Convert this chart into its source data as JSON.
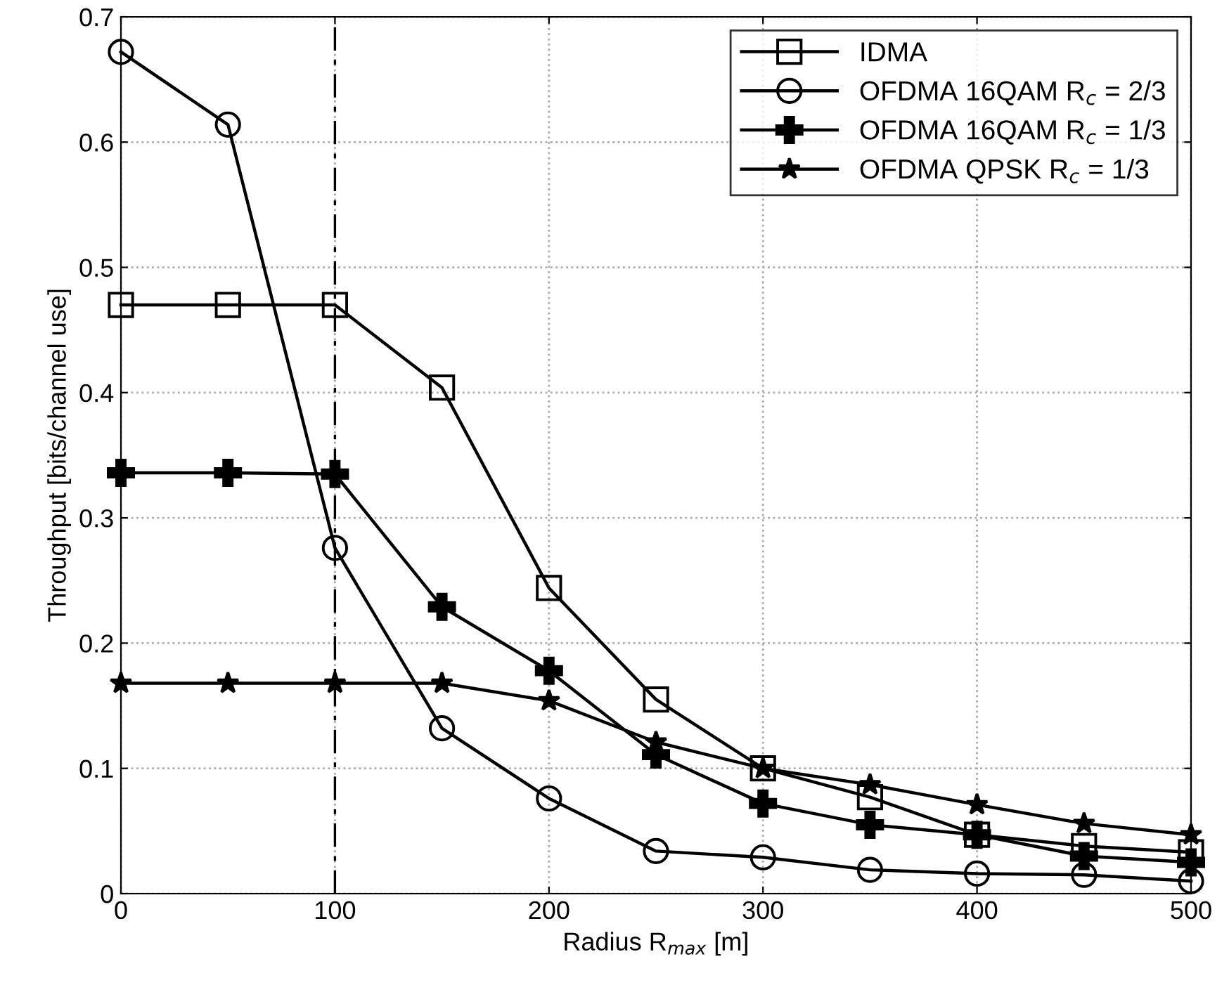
{
  "chart_data": {
    "type": "line",
    "xlabel": "Radius R$_{max}$ [m]",
    "ylabel": "Throughput [bits/channel use]",
    "x": [
      0,
      50,
      100,
      150,
      200,
      250,
      300,
      350,
      400,
      450,
      500
    ],
    "series": [
      {
        "name": "IDMA",
        "color": "#000000",
        "marker": "square",
        "values": [
          0.47,
          0.47,
          0.47,
          0.404,
          0.244,
          0.155,
          0.1,
          0.077,
          0.047,
          0.038,
          0.033
        ]
      },
      {
        "name": "OFDMA 16QAM R$_{c}$ = 2/3",
        "color": "#000000",
        "marker": "circle",
        "values": [
          0.672,
          0.614,
          0.276,
          0.132,
          0.076,
          0.034,
          0.029,
          0.019,
          0.016,
          0.015,
          0.01
        ]
      },
      {
        "name": "OFDMA 16QAM R$_{c}$ = 1/3",
        "color": "#000000",
        "marker": "cross",
        "values": [
          0.336,
          0.336,
          0.335,
          0.229,
          0.178,
          0.111,
          0.072,
          0.055,
          0.047,
          0.03,
          0.025
        ]
      },
      {
        "name": "OFDMA QPSK R$_{c}$ = 1/3",
        "color": "#000000",
        "marker": "star",
        "values": [
          0.168,
          0.168,
          0.168,
          0.168,
          0.154,
          0.121,
          0.1,
          0.087,
          0.071,
          0.056,
          0.047
        ]
      }
    ],
    "xlim": [
      0,
      500
    ],
    "ylim": [
      0,
      0.7
    ],
    "xticks": [
      0,
      100,
      200,
      300,
      400,
      500
    ],
    "yticks": [
      0,
      0.1,
      0.2,
      0.3,
      0.4,
      0.5,
      0.6,
      0.7
    ],
    "ref_lines": [
      {
        "axis": "x",
        "value": 100,
        "label": null,
        "color": "#000000",
        "line_style": "dashdot"
      }
    ],
    "grid": true,
    "legend": "top right",
    "line_style": "solid"
  }
}
